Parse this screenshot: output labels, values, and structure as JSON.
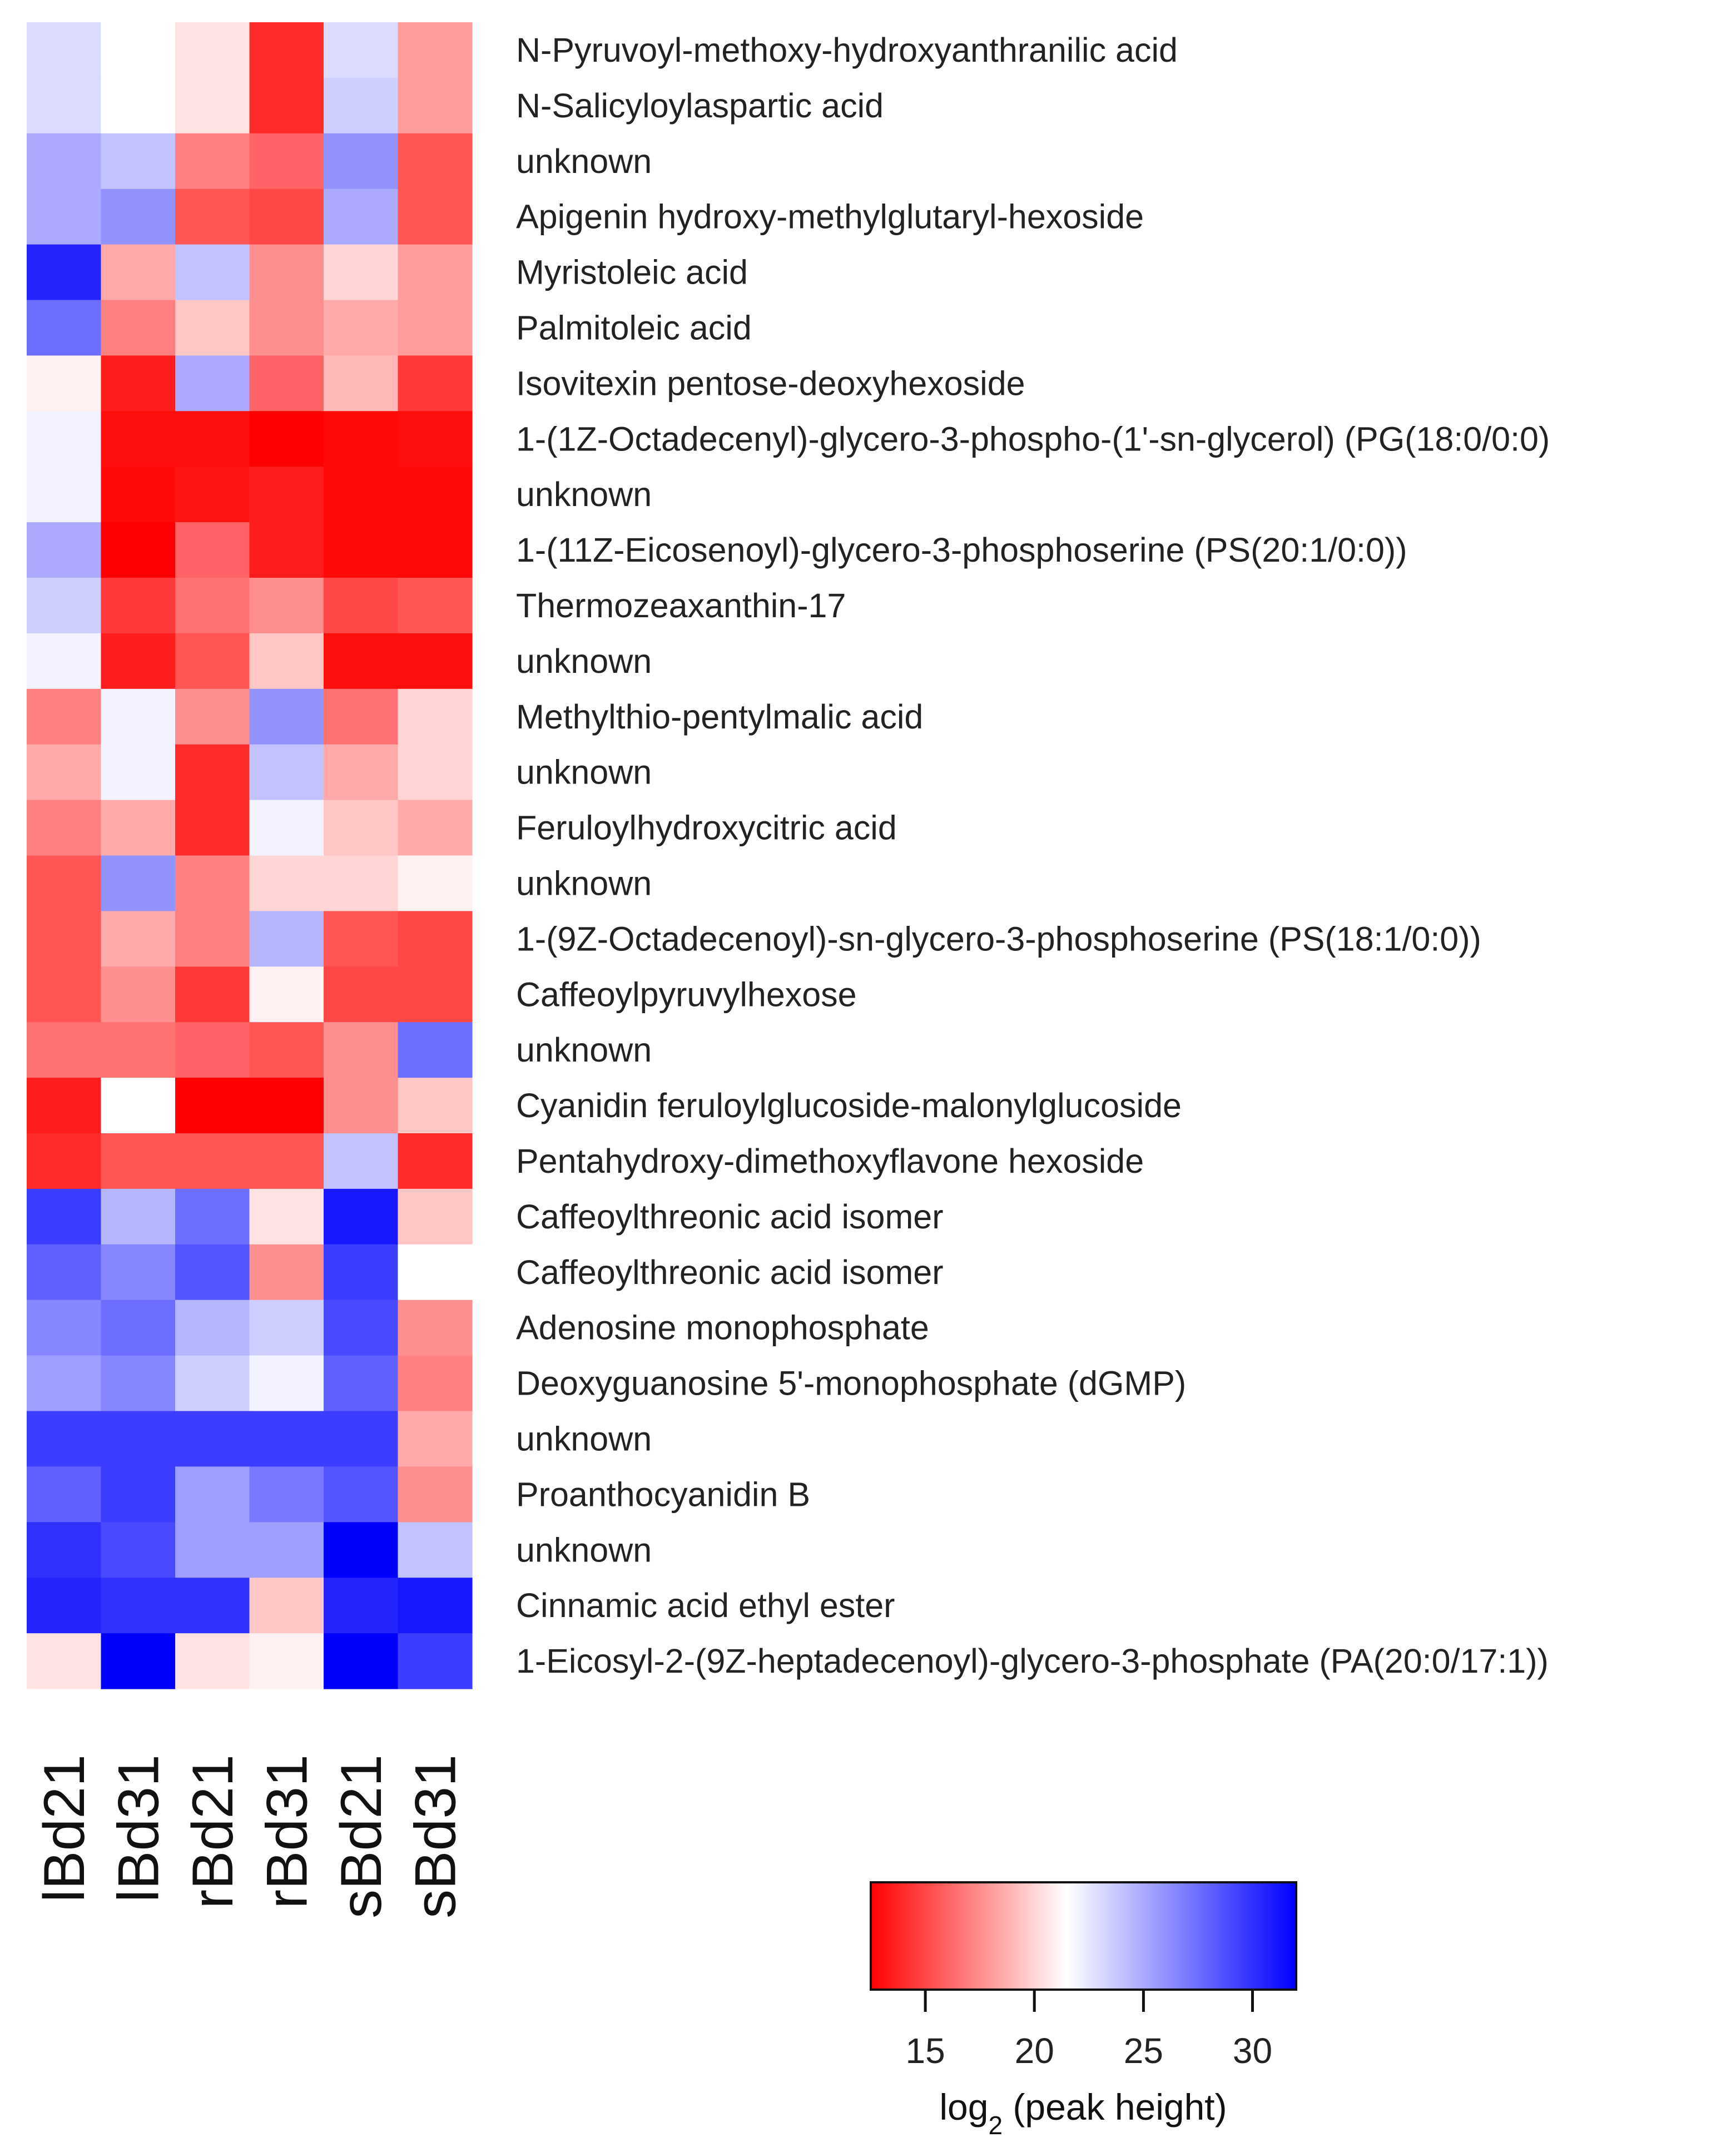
{
  "chart_data": {
    "type": "heatmap",
    "columns": [
      "lBd21",
      "lBd31",
      "rBd21",
      "rBd31",
      "sBd21",
      "sBd31"
    ],
    "rows": [
      "N-Pyruvoyl-methoxy-hydroxyanthranilic acid",
      "N-Salicyloylaspartic acid",
      "unknown",
      "Apigenin hydroxy-methylglutaryl-hexoside",
      "Myristoleic acid",
      "Palmitoleic acid",
      "Isovitexin pentose-deoxyhexoside",
      "1-(1Z-Octadecenyl)-glycero-3-phospho-(1'-sn-glycerol) (PG(18:0/0:0)",
      "unknown",
      "1-(11Z-Eicosenoyl)-glycero-3-phosphoserine (PS(20:1/0:0))",
      "Thermozeaxanthin-17",
      "unknown",
      "Methylthio-pentylmalic acid",
      "unknown",
      "Feruloylhydroxycitric acid",
      "unknown",
      "1-(9Z-Octadecenoyl)-sn-glycero-3-phosphoserine (PS(18:1/0:0))",
      "Caffeoylpyruvylhexose",
      "unknown",
      "Cyanidin feruloylglucoside-malonylglucoside",
      "Pentahydroxy-dimethoxyflavone hexoside",
      "Caffeoylthreonic acid isomer",
      "Caffeoylthreonic acid isomer",
      "Adenosine monophosphate",
      "Deoxyguanosine 5'-monophosphate (dGMP)",
      "unknown",
      "Proanthocyanidin B",
      "unknown",
      "Cinnamic acid ethyl ester",
      "1-Eicosyl-2-(9Z-heptadecenoyl)-glycero-3-phosphate (PA(20:0/17:1))"
    ],
    "values": [
      [
        23.0,
        21.5,
        20.5,
        14.0,
        23.0,
        18.0
      ],
      [
        23.0,
        21.5,
        20.5,
        14.0,
        23.5,
        18.0
      ],
      [
        25.0,
        24.0,
        17.0,
        16.0,
        26.0,
        15.5
      ],
      [
        25.0,
        26.0,
        15.5,
        15.0,
        25.0,
        15.5
      ],
      [
        30.5,
        18.5,
        24.0,
        17.5,
        20.0,
        18.0
      ],
      [
        27.5,
        17.0,
        19.5,
        17.5,
        18.5,
        18.0
      ],
      [
        21.0,
        13.5,
        25.0,
        16.0,
        19.0,
        14.5
      ],
      [
        22.0,
        13.0,
        13.0,
        12.5,
        12.8,
        13.0
      ],
      [
        22.0,
        12.8,
        13.2,
        13.5,
        12.8,
        12.8
      ],
      [
        25.0,
        12.5,
        16.0,
        13.5,
        12.8,
        12.8
      ],
      [
        23.5,
        14.5,
        16.5,
        17.5,
        15.0,
        15.5
      ],
      [
        22.0,
        13.5,
        15.5,
        19.5,
        13.0,
        13.0
      ],
      [
        17.0,
        22.0,
        17.5,
        26.0,
        16.5,
        20.0
      ],
      [
        18.5,
        22.0,
        14.0,
        24.0,
        18.5,
        20.0
      ],
      [
        17.0,
        18.5,
        14.0,
        22.0,
        19.5,
        18.5
      ],
      [
        15.5,
        26.0,
        17.0,
        20.0,
        20.0,
        21.0
      ],
      [
        15.5,
        18.5,
        17.0,
        24.5,
        15.5,
        15.0
      ],
      [
        15.5,
        17.5,
        14.5,
        21.0,
        15.0,
        15.0
      ],
      [
        16.5,
        16.5,
        16.0,
        15.5,
        17.5,
        27.5
      ],
      [
        13.5,
        21.5,
        12.5,
        12.5,
        17.5,
        19.5
      ],
      [
        14.0,
        15.5,
        15.5,
        15.5,
        24.0,
        14.0
      ],
      [
        29.5,
        24.5,
        27.5,
        20.5,
        31.0,
        19.5
      ],
      [
        28.0,
        26.5,
        28.5,
        17.5,
        29.5,
        21.5
      ],
      [
        26.5,
        27.5,
        24.5,
        23.5,
        29.0,
        17.5
      ],
      [
        25.5,
        26.5,
        23.5,
        22.0,
        28.0,
        17.0
      ],
      [
        29.5,
        29.5,
        29.5,
        29.5,
        29.5,
        18.5
      ],
      [
        28.0,
        29.5,
        25.5,
        27.0,
        28.5,
        17.5
      ],
      [
        30.0,
        29.0,
        25.5,
        25.5,
        32.0,
        24.0
      ],
      [
        30.5,
        30.0,
        30.0,
        19.5,
        30.5,
        31.0
      ],
      [
        20.5,
        32.0,
        20.5,
        21.0,
        32.0,
        29.5
      ]
    ],
    "color_scale": {
      "domain": [
        12.5,
        21.5,
        32.0
      ],
      "colors": [
        "#ff0000",
        "#ffffff",
        "#0000ff"
      ]
    },
    "colorbar": {
      "ticks": [
        15,
        20,
        25,
        30
      ],
      "range": [
        12.5,
        32.0
      ],
      "title_main": "log",
      "title_sub": "2",
      "title_rest": " (peak height)"
    }
  }
}
